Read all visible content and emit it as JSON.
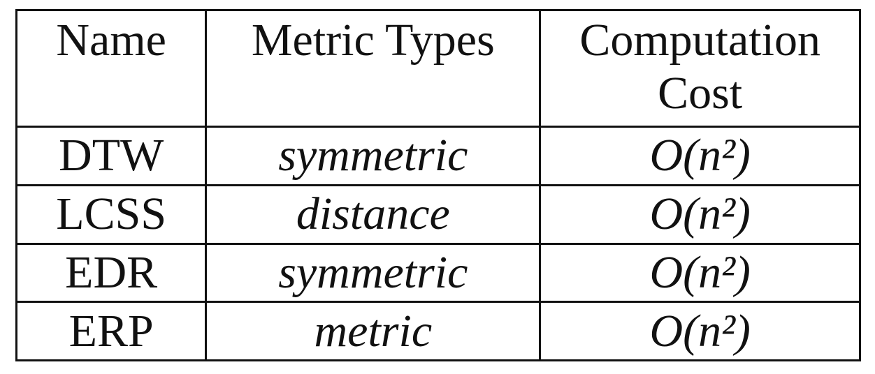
{
  "table": {
    "header": [
      "Name",
      "Metric Types",
      "Computation Cost"
    ],
    "rows": [
      [
        "DTW",
        "symmetric",
        "O(n²)"
      ],
      [
        "LCSS",
        "distance",
        "O(n²)"
      ],
      [
        "EDR",
        "symmetric",
        "O(n²)"
      ],
      [
        "ERP",
        "metric",
        "O(n²)"
      ]
    ]
  }
}
